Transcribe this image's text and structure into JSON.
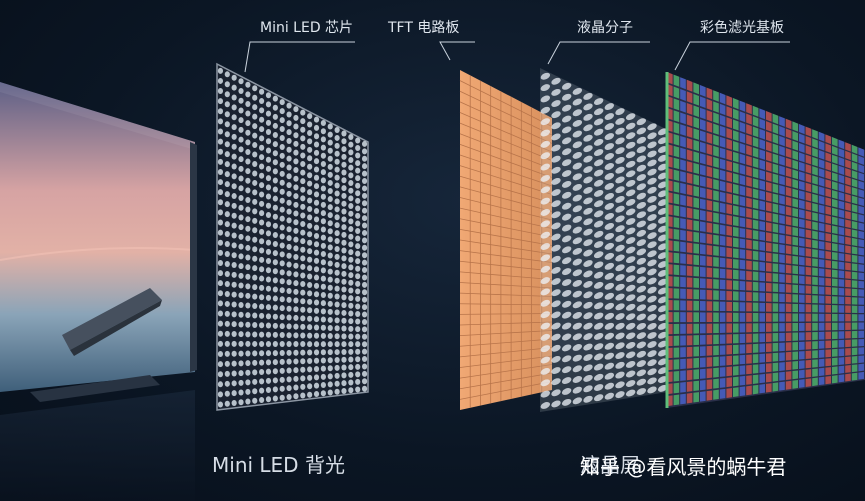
{
  "labels": {
    "mini_led_chip": "Mini LED 芯片",
    "tft_board": "TFT 电路板",
    "liquid_crystal": "液晶分子",
    "color_filter": "彩色滤光基板",
    "mini_led_backlight": "Mini LED 背光",
    "lcd_screen": "液晶屏"
  },
  "watermark": "知乎 @看风景的蜗牛君",
  "colors": {
    "background": "#0b1624",
    "led_panel": "#c9d3dc",
    "tft_panel": "#e8a26e",
    "liquid_crystal": "#eef3f8",
    "filter_red": "#c0504d",
    "filter_green": "#4caf6a",
    "filter_blue": "#4a62c9"
  }
}
